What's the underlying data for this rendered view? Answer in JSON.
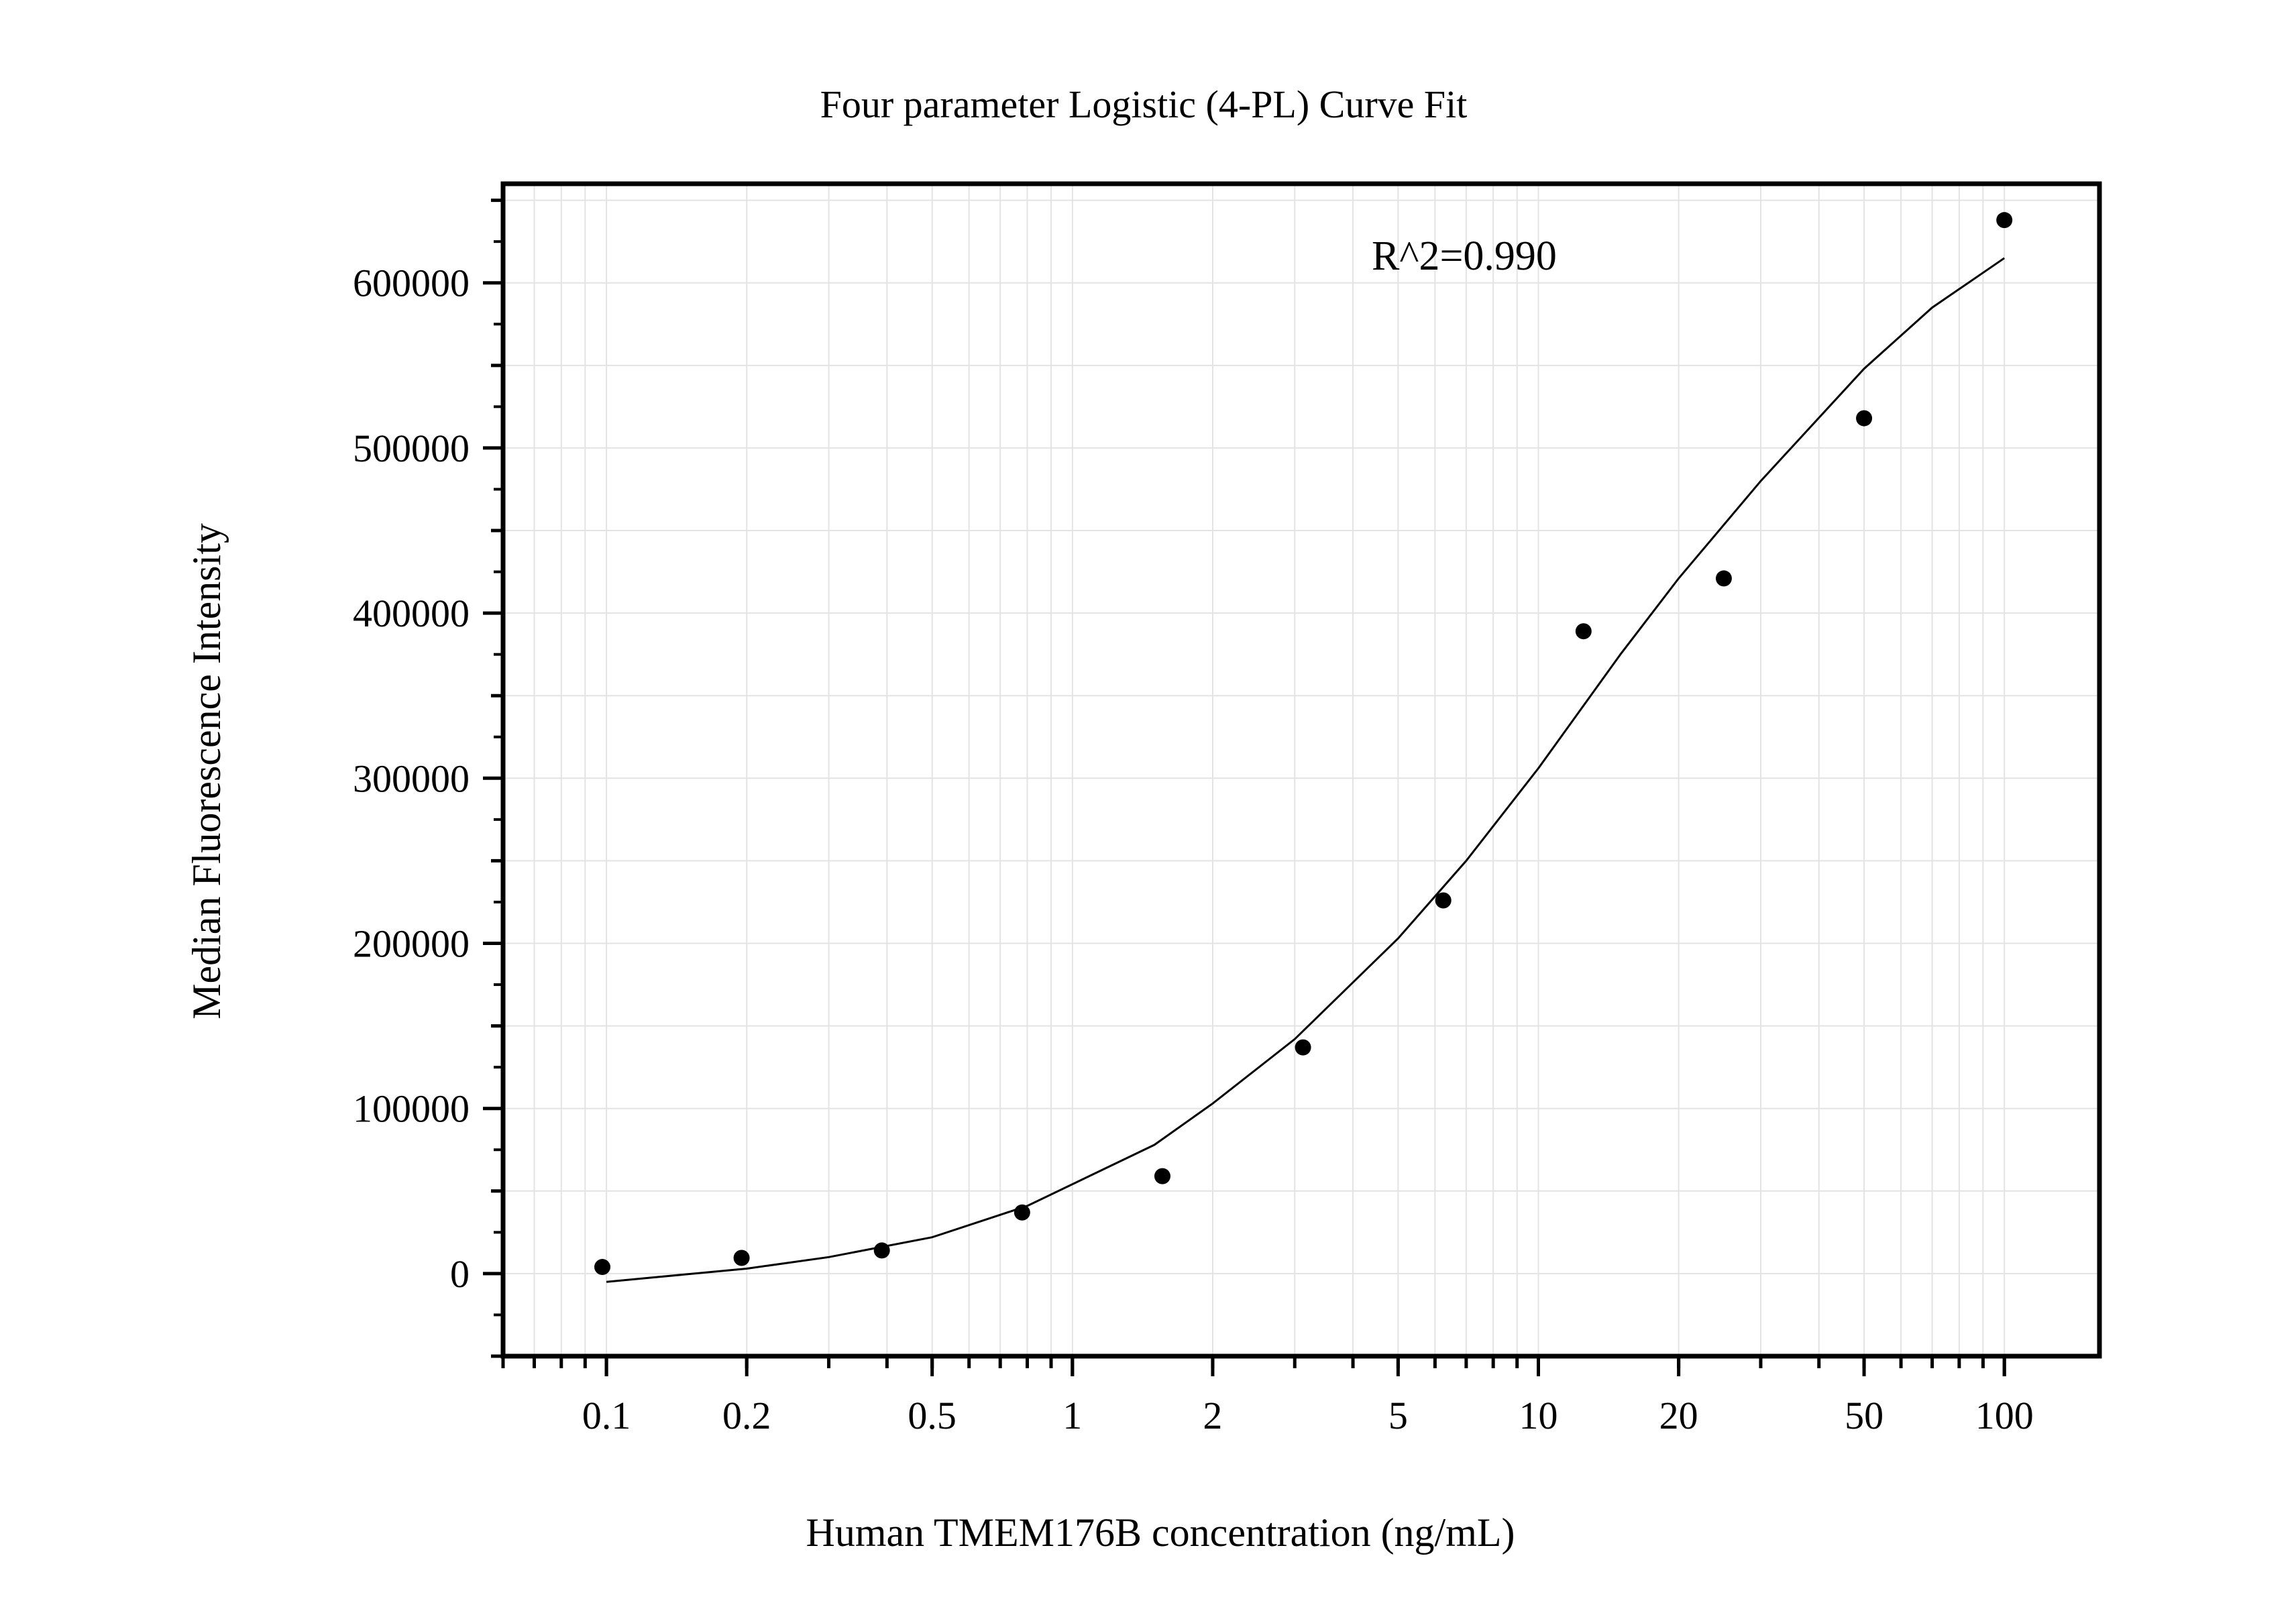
{
  "chart_data": {
    "type": "scatter",
    "title": "Four parameter Logistic (4-PL) Curve Fit",
    "xlabel": "Human TMEM176B concentration (ng/mL)",
    "ylabel": "Median Fluorescence Intensity",
    "annotation": "R^2=0.990",
    "x_scale": "log",
    "xlim": [
      0.06,
      160
    ],
    "ylim": [
      -50000,
      660000
    ],
    "x_ticks": [
      0.1,
      0.2,
      0.5,
      1,
      2,
      5,
      10,
      20,
      50,
      100
    ],
    "x_tick_labels": [
      "0.1",
      "0.2",
      "0.5",
      "1",
      "2",
      "5",
      "10",
      "20",
      "50",
      "100"
    ],
    "y_ticks": [
      0,
      100000,
      200000,
      300000,
      400000,
      500000,
      600000
    ],
    "y_tick_labels": [
      "0",
      "100000",
      "200000",
      "300000",
      "400000",
      "500000",
      "600000"
    ],
    "grid": true,
    "series": [
      {
        "type": "scatter",
        "x": [
          0.098,
          0.195,
          0.39,
          0.78,
          1.56,
          3.125,
          6.25,
          12.5,
          25,
          50,
          100
        ],
        "y": [
          4000,
          9500,
          14000,
          37000,
          59000,
          137000,
          226000,
          389000,
          421000,
          518000,
          638000
        ]
      },
      {
        "type": "line",
        "x": [
          0.1,
          0.2,
          0.3,
          0.5,
          0.8,
          1.5,
          2,
          3,
          5,
          7,
          10,
          15,
          20,
          30,
          50,
          70,
          100
        ],
        "y": [
          -5000,
          3000,
          10000,
          22000,
          41000,
          78000,
          103000,
          142000,
          203000,
          250000,
          306000,
          375000,
          421000,
          480000,
          548000,
          585000,
          615000
        ]
      }
    ],
    "colors": {
      "marks": "#000000",
      "grid": "#e3e3e3",
      "background": "#ffffff"
    }
  }
}
